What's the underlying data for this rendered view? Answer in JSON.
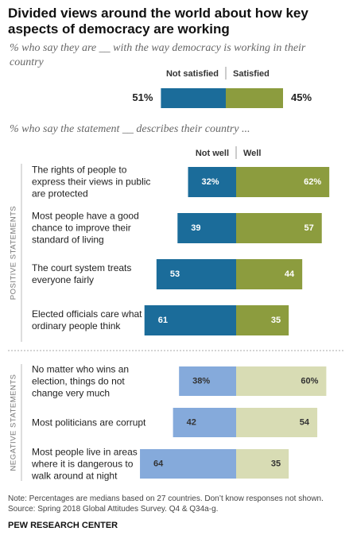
{
  "title": "Divided views around the world about how key aspects of democracy are working",
  "chart_data": [
    {
      "type": "diverging_bar",
      "subtitle": "% who say they are __ with the way democracy is working in their country",
      "categories": [
        null
      ],
      "series": [
        {
          "name": "Not satisfied",
          "color": "#1b6c9a",
          "values": [
            51
          ],
          "value_labels": [
            "51%"
          ]
        },
        {
          "name": "Satisfied",
          "color": "#8c9c3e",
          "values": [
            45
          ],
          "value_labels": [
            "45%"
          ]
        }
      ]
    },
    {
      "type": "diverging_bar",
      "subtitle": "% who say the statement __ describes their country ...",
      "group": "POSITIVE STATEMENTS",
      "categories": [
        "The rights of people to express their views in public are protected",
        "Most people have a good chance to improve their standard of living",
        "The court system treats everyone fairly",
        "Elected officials care what ordinary people think"
      ],
      "series": [
        {
          "name": "Not well",
          "color": "#1b6c9a",
          "values": [
            32,
            39,
            53,
            61
          ],
          "value_labels": [
            "32%",
            "39",
            "53",
            "61"
          ]
        },
        {
          "name": "Well",
          "color": "#8c9c3e",
          "values": [
            62,
            57,
            44,
            35
          ],
          "value_labels": [
            "62%",
            "57",
            "44",
            "35"
          ]
        }
      ]
    },
    {
      "type": "diverging_bar",
      "group": "NEGATIVE STATEMENTS",
      "categories": [
        "No matter who wins an election, things do not change very much",
        "Most politicians are corrupt",
        "Most people live in areas where it is dangerous to walk around at night"
      ],
      "series": [
        {
          "color": "#85aadb",
          "values": [
            38,
            42,
            64
          ],
          "value_labels": [
            "38%",
            "42",
            "64"
          ]
        },
        {
          "color": "#d8dcb4",
          "values": [
            60,
            54,
            35
          ],
          "value_labels": [
            "60%",
            "54",
            "35"
          ]
        }
      ]
    }
  ],
  "note": "Note: Percentages are medians based on 27 countries. Don’t know responses not shown.",
  "source": "Source: Spring 2018 Global Attitudes Survey. Q4 & Q34a-g.",
  "footer": "PEW RESEARCH CENTER"
}
